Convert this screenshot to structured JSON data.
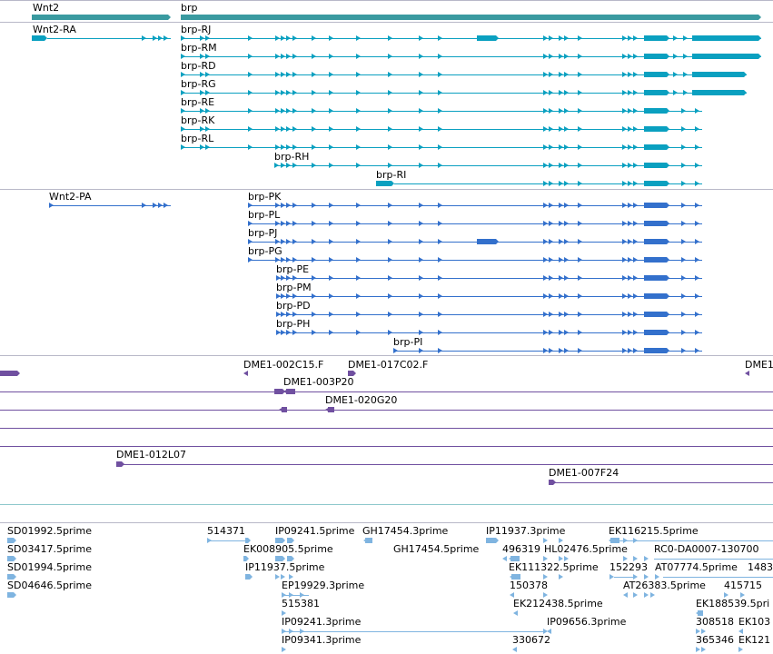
{
  "colors": {
    "gene": "#3a9aa0",
    "transcript_cyan": "#0aa0c0",
    "transcript_blue": "#3370cc",
    "clone": "#7050a0",
    "est": "#7fb4e0",
    "separator": "#b8b8c8",
    "teal_line": "#8ec8cc"
  },
  "genes": [
    {
      "label": "Wnt2"
    },
    {
      "label": "brp"
    }
  ],
  "transcripts_top": [
    {
      "label": "Wnt2-RA"
    },
    {
      "label": "brp-RJ"
    },
    {
      "label": "brp-RM"
    },
    {
      "label": "brp-RD"
    },
    {
      "label": "brp-RG"
    },
    {
      "label": "brp-RE"
    },
    {
      "label": "brp-RK"
    },
    {
      "label": "brp-RL"
    },
    {
      "label": "brp-RH"
    },
    {
      "label": "brp-RI"
    }
  ],
  "transcripts_bottom": [
    {
      "label": "Wnt2-PA"
    },
    {
      "label": "brp-PK"
    },
    {
      "label": "brp-PL"
    },
    {
      "label": "brp-PJ"
    },
    {
      "label": "brp-PG"
    },
    {
      "label": "brp-PE"
    },
    {
      "label": "brp-PM"
    },
    {
      "label": "brp-PD"
    },
    {
      "label": "brp-PH"
    },
    {
      "label": "brp-PI"
    }
  ],
  "clones": [
    {
      "label": "DME1-002C15.F"
    },
    {
      "label": "DME1-017C02.F"
    },
    {
      "label": "DME1"
    },
    {
      "label": "DME1-003P20"
    },
    {
      "label": "DME1-020G20"
    },
    {
      "label": "DME1-012L07"
    },
    {
      "label": "DME1-007F24"
    }
  ],
  "ests": [
    {
      "label": "SD01992.5prime"
    },
    {
      "label": "SD03417.5prime"
    },
    {
      "label": "SD01994.5prime"
    },
    {
      "label": "SD04646.5prime"
    },
    {
      "label": "514371"
    },
    {
      "label": "IP09241.5prime"
    },
    {
      "label": "GH17454.3prime"
    },
    {
      "label": "IP11937.3prime"
    },
    {
      "label": "EK116215.5prime"
    },
    {
      "label": "EK008905.5prime"
    },
    {
      "label": "GH17454.5prime"
    },
    {
      "label": "496319"
    },
    {
      "label": "HL02476.5prime"
    },
    {
      "label": "RC0-DA0007-130700"
    },
    {
      "label": "IP11937.5prime"
    },
    {
      "label": "EK111322.5prime"
    },
    {
      "label": "152293"
    },
    {
      "label": "AT07774.5prime"
    },
    {
      "label": "1483"
    },
    {
      "label": "EP19929.3prime"
    },
    {
      "label": "150378"
    },
    {
      "label": "AT26383.5prime"
    },
    {
      "label": "415715"
    },
    {
      "label": "515381"
    },
    {
      "label": "EK212438.5prime"
    },
    {
      "label": "EK188539.5pri"
    },
    {
      "label": "IP09241.3prime"
    },
    {
      "label": "IP09656.3prime"
    },
    {
      "label": "308518"
    },
    {
      "label": "EK103"
    },
    {
      "label": "IP09341.3prime"
    },
    {
      "label": "330672"
    },
    {
      "label": "365346"
    },
    {
      "label": "EK121"
    }
  ]
}
